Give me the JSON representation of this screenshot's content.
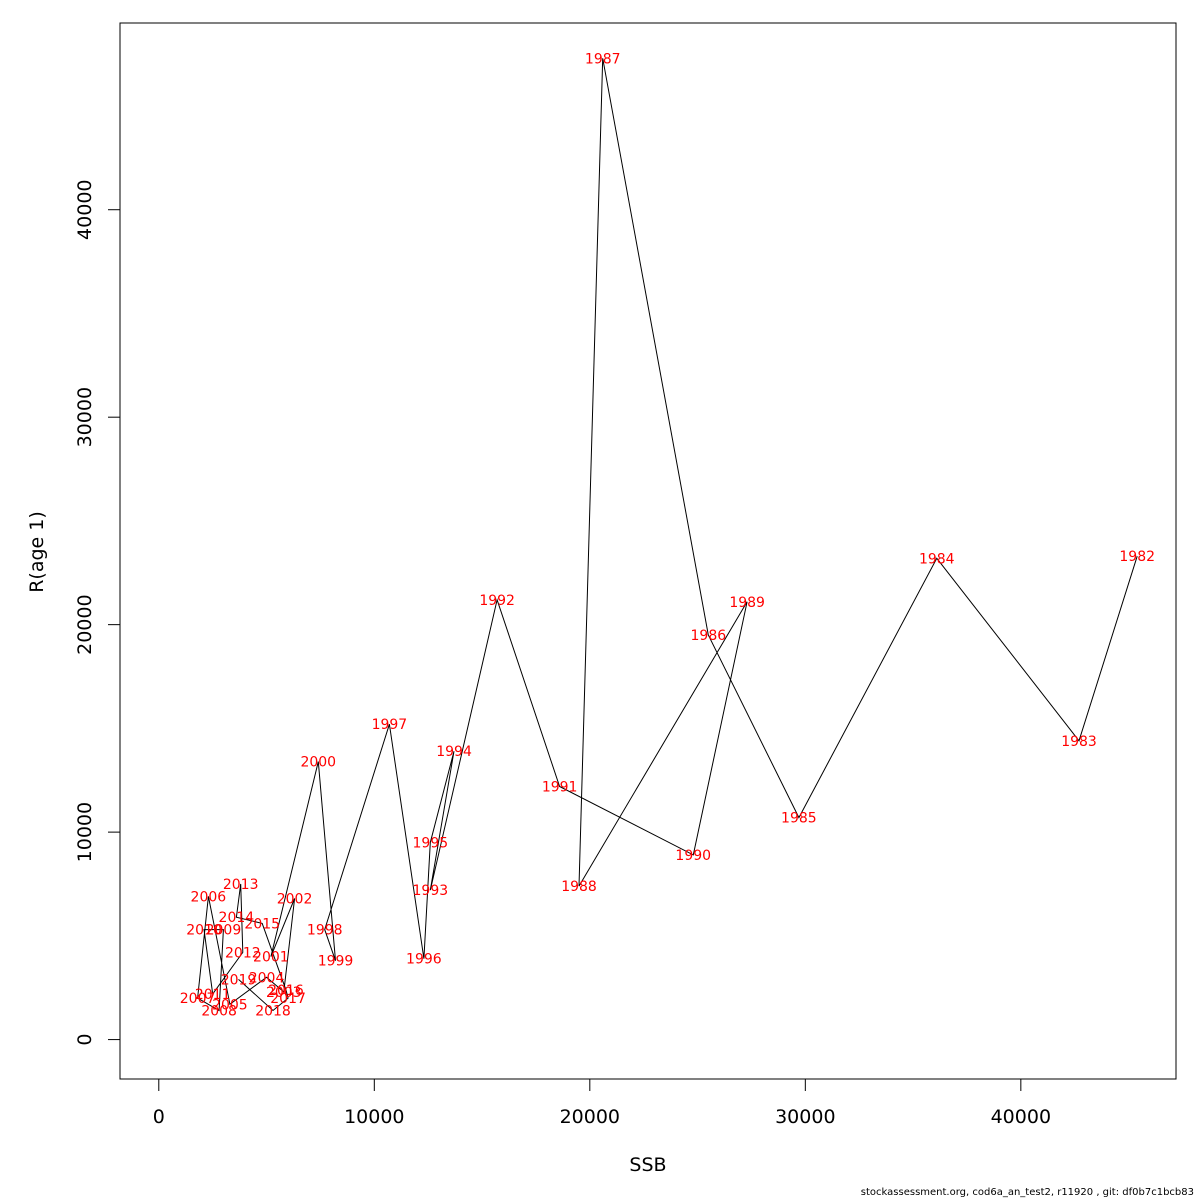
{
  "chart_data": {
    "type": "line",
    "title": "",
    "xlabel": "SSB",
    "ylabel": "R(age 1)",
    "xlim": [
      -1800,
      47200
    ],
    "ylim": [
      -1900,
      49000
    ],
    "xticks": [
      0,
      10000,
      20000,
      30000,
      40000
    ],
    "yticks": [
      0,
      10000,
      20000,
      30000,
      40000
    ],
    "xtick_labels": [
      "0",
      "10000",
      "20000",
      "30000",
      "40000"
    ],
    "ytick_labels": [
      "0",
      "10000",
      "20000",
      "30000",
      "40000"
    ],
    "line_color": "#000000",
    "label_color": "#ff0000",
    "points": [
      {
        "year": "1982",
        "ssb": 45400,
        "r": 23300
      },
      {
        "year": "1983",
        "ssb": 42700,
        "r": 14400
      },
      {
        "year": "1984",
        "ssb": 36100,
        "r": 23200
      },
      {
        "year": "1985",
        "ssb": 29700,
        "r": 10700
      },
      {
        "year": "1986",
        "ssb": 25500,
        "r": 19500
      },
      {
        "year": "1987",
        "ssb": 20600,
        "r": 47300
      },
      {
        "year": "1988",
        "ssb": 19500,
        "r": 7400
      },
      {
        "year": "1989",
        "ssb": 27300,
        "r": 21100
      },
      {
        "year": "1990",
        "ssb": 24800,
        "r": 8900
      },
      {
        "year": "1991",
        "ssb": 18600,
        "r": 12200
      },
      {
        "year": "1992",
        "ssb": 15700,
        "r": 21200
      },
      {
        "year": "1993",
        "ssb": 12600,
        "r": 7200
      },
      {
        "year": "1994",
        "ssb": 13700,
        "r": 13900
      },
      {
        "year": "1995",
        "ssb": 12600,
        "r": 9500
      },
      {
        "year": "1996",
        "ssb": 12300,
        "r": 3900
      },
      {
        "year": "1997",
        "ssb": 10700,
        "r": 15200
      },
      {
        "year": "1998",
        "ssb": 7700,
        "r": 5300
      },
      {
        "year": "1999",
        "ssb": 8200,
        "r": 3800
      },
      {
        "year": "2000",
        "ssb": 7400,
        "r": 13400
      },
      {
        "year": "2001",
        "ssb": 5200,
        "r": 4000
      },
      {
        "year": "2002",
        "ssb": 6300,
        "r": 6800
      },
      {
        "year": "2003",
        "ssb": 5800,
        "r": 2300
      },
      {
        "year": "2004",
        "ssb": 5000,
        "r": 3000
      },
      {
        "year": "2005",
        "ssb": 3300,
        "r": 1700
      },
      {
        "year": "2006",
        "ssb": 2300,
        "r": 6900
      },
      {
        "year": "2007",
        "ssb": 1800,
        "r": 2000
      },
      {
        "year": "2008",
        "ssb": 2800,
        "r": 1400
      },
      {
        "year": "2009",
        "ssb": 3000,
        "r": 5300
      },
      {
        "year": "2010",
        "ssb": 2100,
        "r": 5300
      },
      {
        "year": "2011",
        "ssb": 2500,
        "r": 2200
      },
      {
        "year": "2012",
        "ssb": 3900,
        "r": 4200
      },
      {
        "year": "2013",
        "ssb": 3800,
        "r": 7500
      },
      {
        "year": "2014",
        "ssb": 3600,
        "r": 5900
      },
      {
        "year": "2015",
        "ssb": 4800,
        "r": 5600
      },
      {
        "year": "2016",
        "ssb": 5900,
        "r": 2400
      },
      {
        "year": "2017",
        "ssb": 6000,
        "r": 2000
      },
      {
        "year": "2018",
        "ssb": 5300,
        "r": 1400
      },
      {
        "year": "2019",
        "ssb": 3700,
        "r": 2900
      }
    ]
  },
  "footer": "stockassessment.org, cod6a_an_test2, r11920 , git: df0b7c1bcb83"
}
